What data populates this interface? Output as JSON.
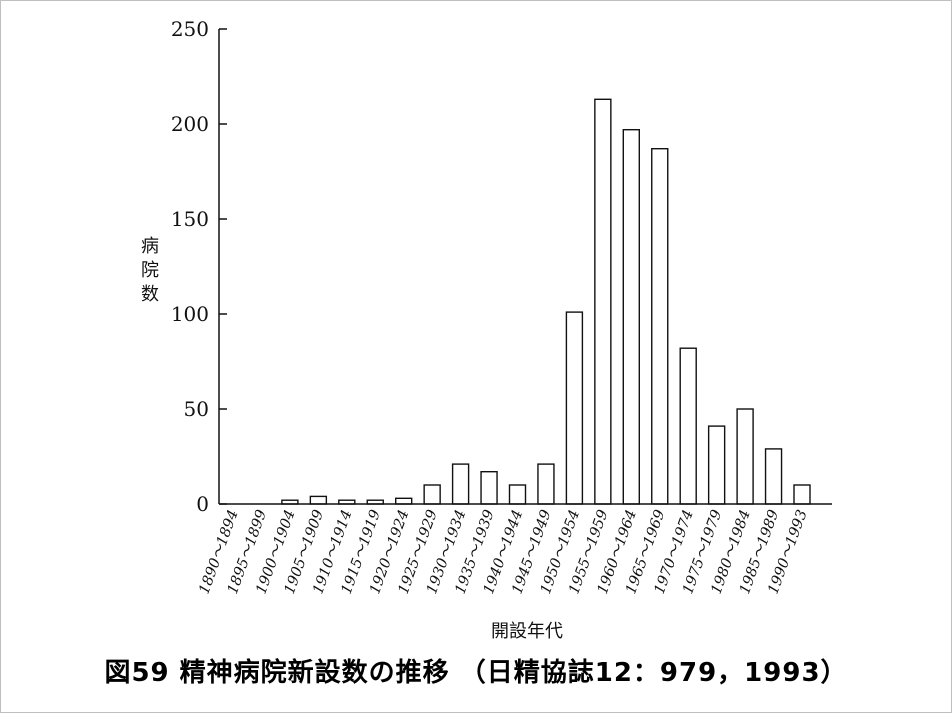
{
  "chart_data": {
    "type": "bar",
    "ylabel": "病院数",
    "xlabel": "開設年代",
    "caption": "図59 精神病院新設数の推移 （日精協誌12：979，1993）",
    "ylim": [
      0,
      250
    ],
    "yticks": [
      0,
      50,
      100,
      150,
      200,
      250
    ],
    "grid": false,
    "categories": [
      "1890～1894",
      "1895～1899",
      "1900～1904",
      "1905～1909",
      "1910～1914",
      "1915～1919",
      "1920～1924",
      "1925～1929",
      "1930～1934",
      "1935～1939",
      "1940～1944",
      "1945～1949",
      "1950～1954",
      "1955～1959",
      "1960～1964",
      "1965～1969",
      "1970～1974",
      "1975～1979",
      "1980～1984",
      "1985～1989",
      "1990～1993"
    ],
    "values": [
      0,
      0,
      2,
      4,
      2,
      2,
      3,
      10,
      21,
      17,
      10,
      21,
      101,
      213,
      197,
      187,
      82,
      41,
      50,
      29,
      10
    ]
  }
}
